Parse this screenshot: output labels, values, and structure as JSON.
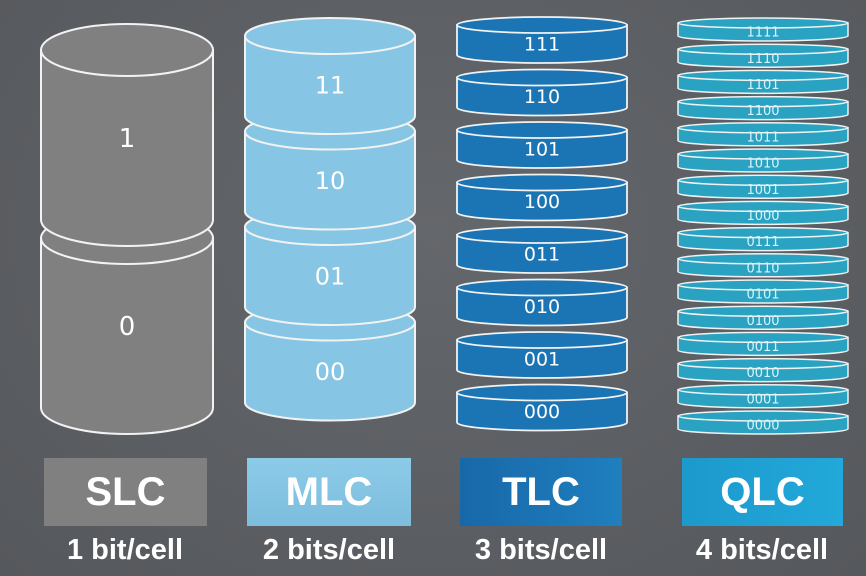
{
  "colors": {
    "background": "#5a5d61",
    "slc": "#808080",
    "mlc": "#86c5e3",
    "tlc": "#1b74b4",
    "qlc": "#1ea3d0",
    "qlc_disk": "#2aa3c2",
    "outline": "#f2f2f2"
  },
  "columns": [
    {
      "name": "SLC",
      "bits": "1 bit/cell",
      "states": [
        "1",
        "0"
      ]
    },
    {
      "name": "MLC",
      "bits": "2 bits/cell",
      "states": [
        "11",
        "10",
        "01",
        "00"
      ]
    },
    {
      "name": "TLC",
      "bits": "3 bits/cell",
      "states": [
        "111",
        "110",
        "101",
        "100",
        "011",
        "010",
        "001",
        "000"
      ]
    },
    {
      "name": "QLC",
      "bits": "4 bits/cell",
      "states": [
        "1111",
        "1110",
        "1101",
        "1100",
        "1011",
        "1010",
        "1001",
        "1000",
        "0111",
        "0110",
        "0101",
        "0100",
        "0011",
        "0010",
        "0001",
        "0000"
      ]
    }
  ]
}
